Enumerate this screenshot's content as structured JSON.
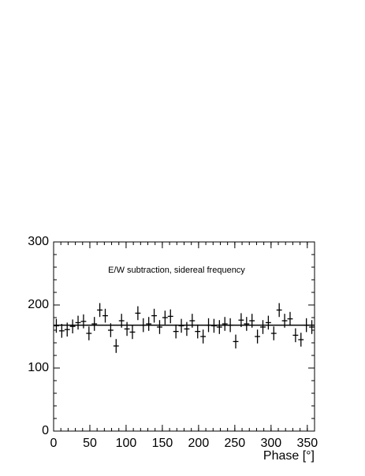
{
  "chart_data": {
    "type": "errorbar",
    "annotation": "E/W subtraction, sidereal frequency",
    "x_label": "Phase [°]",
    "x": [
      3.75,
      11.25,
      18.75,
      26.25,
      33.75,
      41.25,
      48.75,
      56.25,
      63.75,
      71.25,
      78.75,
      86.25,
      93.75,
      101.25,
      108.75,
      116.25,
      123.75,
      131.25,
      138.75,
      146.25,
      153.75,
      161.25,
      168.75,
      176.25,
      183.75,
      191.25,
      198.75,
      206.25,
      213.75,
      221.25,
      228.75,
      236.25,
      243.75,
      251.25,
      258.75,
      266.25,
      273.75,
      281.25,
      288.75,
      296.25,
      303.75,
      311.25,
      318.75,
      326.25,
      333.75,
      341.25,
      348.75,
      356.25
    ],
    "values": [
      167,
      159,
      161,
      166,
      172,
      174,
      155,
      170,
      192,
      183,
      160,
      135,
      175,
      162,
      157,
      187,
      168,
      170,
      183,
      165,
      180,
      182,
      158,
      167,
      162,
      175,
      158,
      150,
      168,
      167,
      165,
      170,
      168,
      142,
      176,
      170,
      175,
      150,
      165,
      172,
      155,
      192,
      175,
      178,
      152,
      145,
      168,
      165
    ],
    "yerr": [
      11,
      11,
      11,
      11,
      11,
      11,
      11,
      11,
      11,
      11,
      11,
      11,
      11,
      11,
      11,
      11,
      11,
      11,
      11,
      11,
      11,
      11,
      11,
      11,
      11,
      11,
      11,
      11,
      11,
      11,
      11,
      11,
      11,
      11,
      11,
      11,
      11,
      11,
      11,
      11,
      11,
      11,
      11,
      11,
      11,
      11,
      11,
      11
    ],
    "bin_half_width": 3.75,
    "fit": 168,
    "color": "#000000",
    "xlim": [
      0,
      360
    ],
    "xticks": [
      0,
      50,
      100,
      150,
      200,
      250,
      300,
      350
    ],
    "ylim": [
      0,
      300
    ],
    "yticks": [
      0,
      100,
      200,
      300
    ]
  }
}
